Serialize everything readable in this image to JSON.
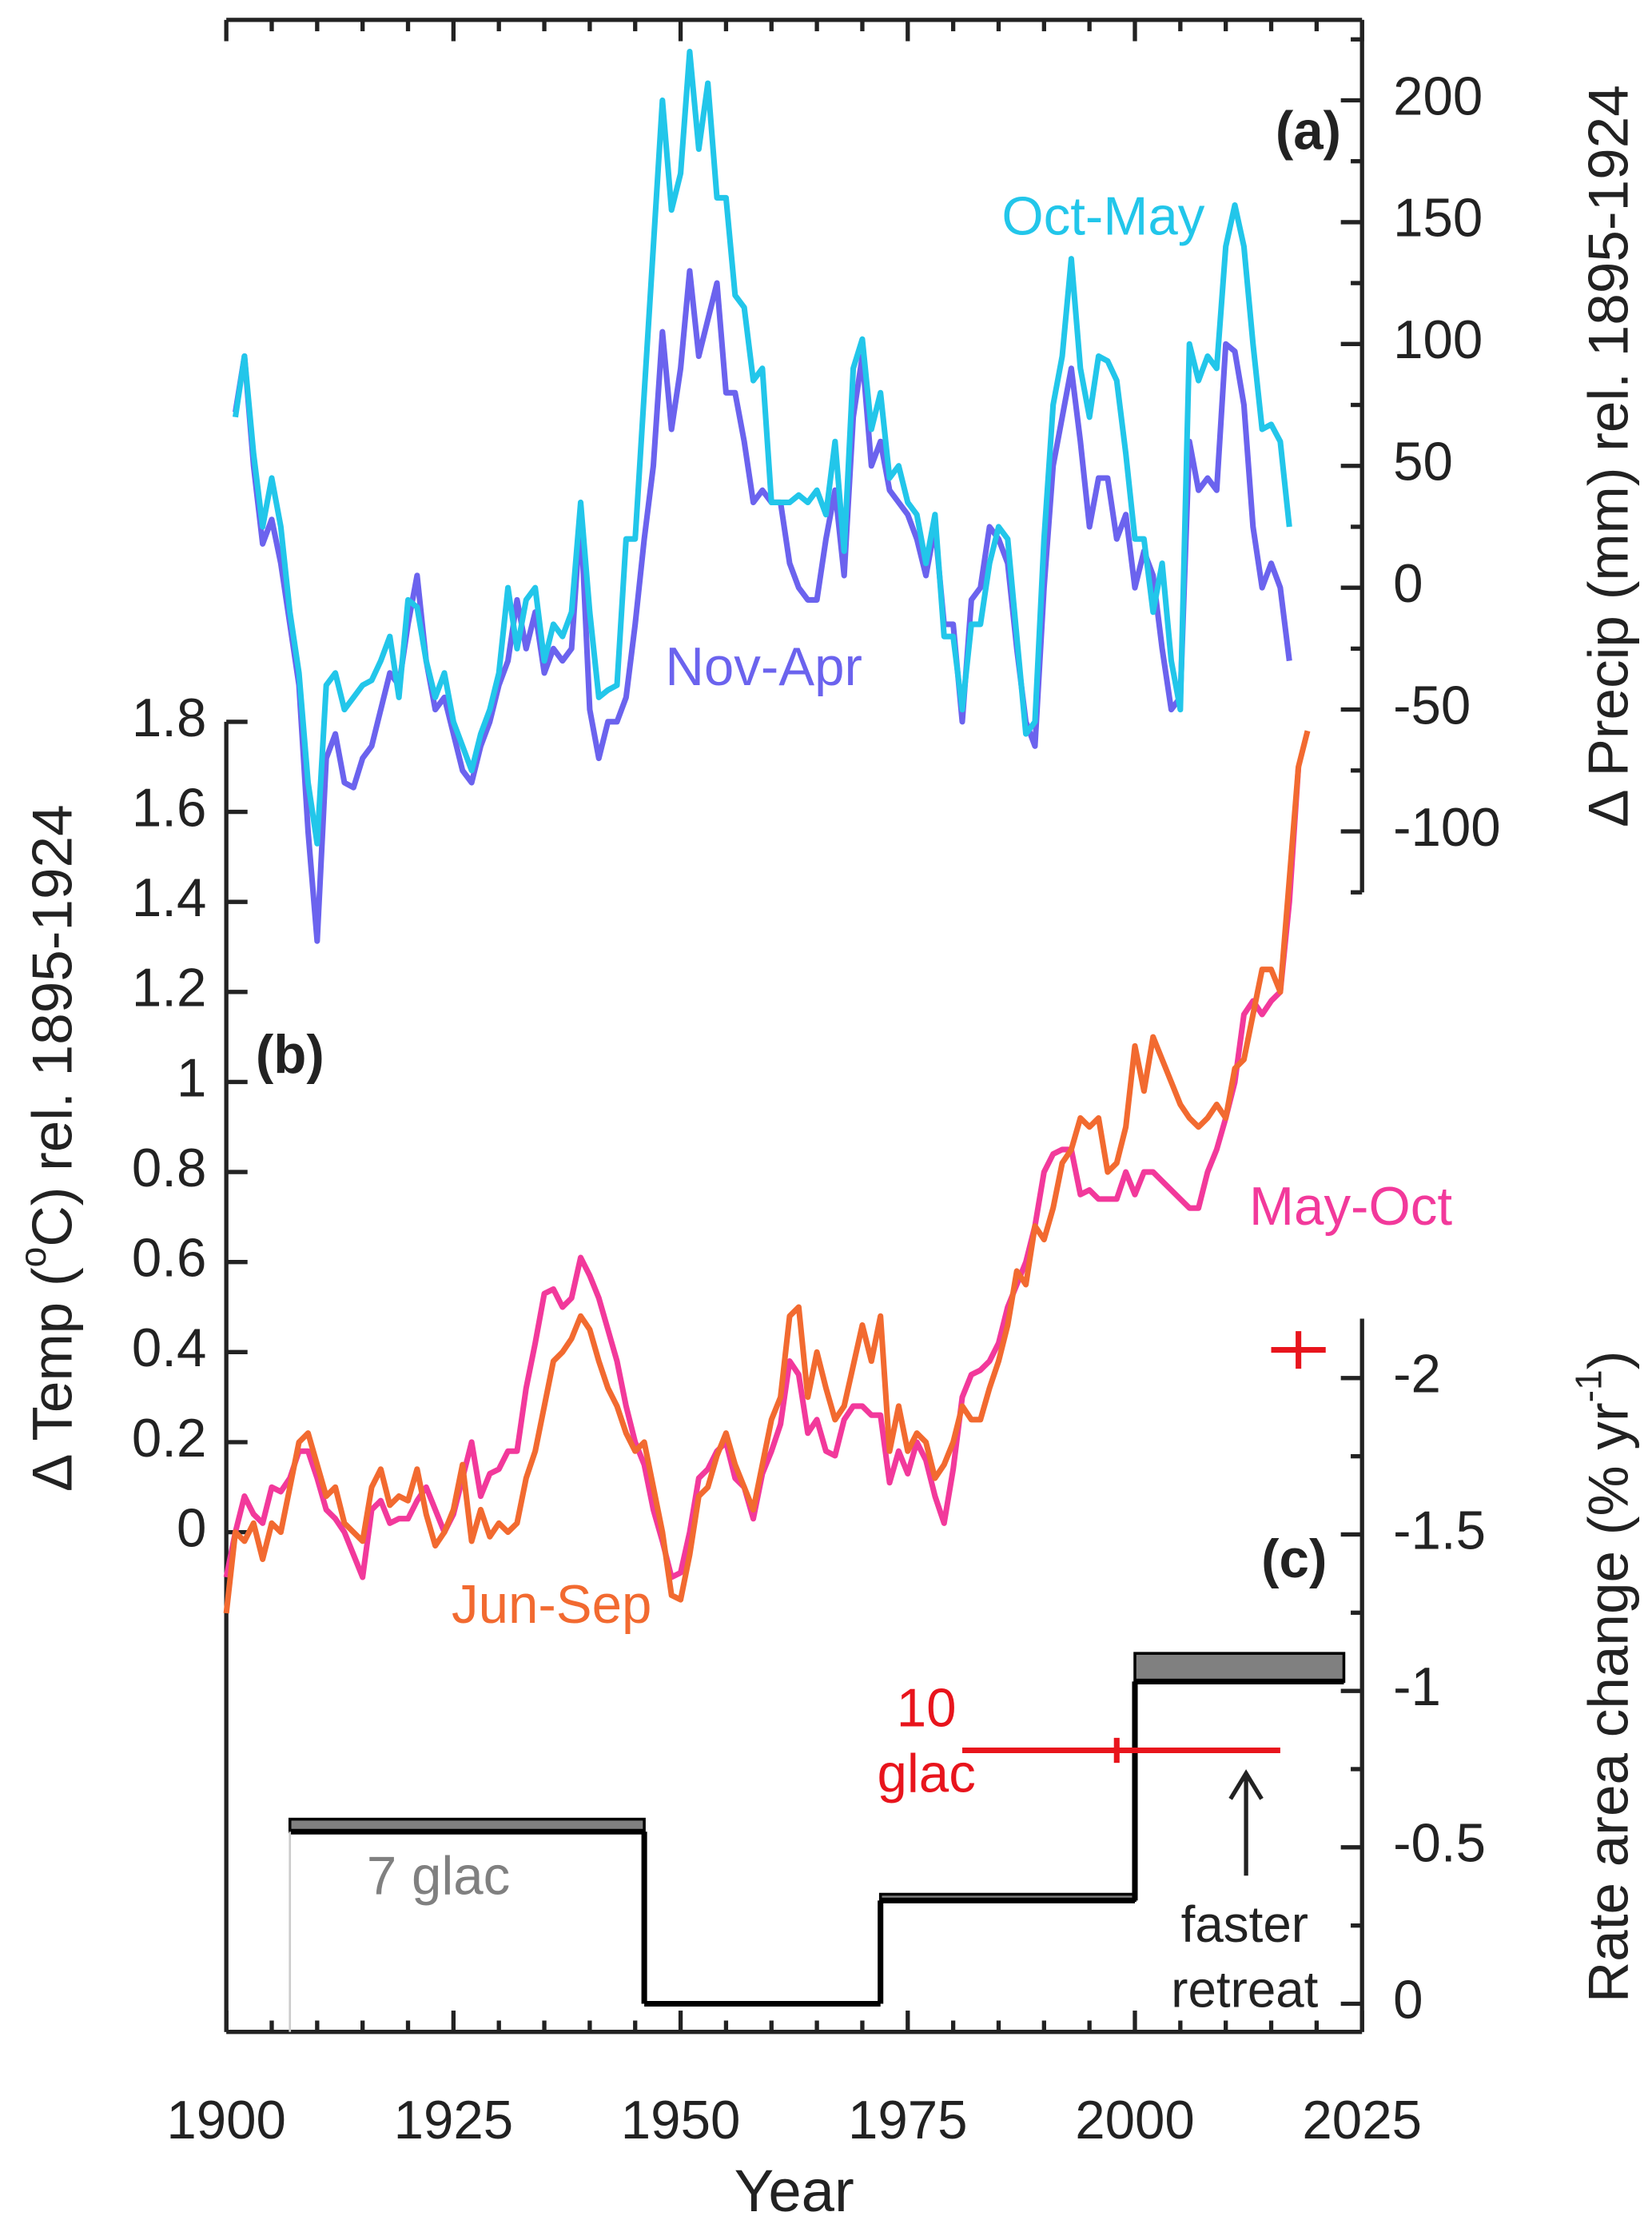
{
  "chart_data": [
    {
      "type": "line",
      "panel_label": "(a)",
      "ylabel_parts": [
        {
          "text": "Δ Precip (mm) rel. 1895-1924"
        }
      ],
      "ylim": [
        -125,
        233
      ],
      "yticks": [
        -100,
        -50,
        0,
        50,
        100,
        150,
        200
      ],
      "yminorticks": [
        -125,
        -75,
        -25,
        25,
        75,
        125,
        175,
        225
      ],
      "x": [
        1901,
        1902,
        1903,
        1904,
        1905,
        1906,
        1907,
        1908,
        1909,
        1910,
        1911,
        1912,
        1913,
        1914,
        1915,
        1916,
        1917,
        1918,
        1919,
        1920,
        1921,
        1922,
        1923,
        1924,
        1925,
        1926,
        1927,
        1928,
        1929,
        1930,
        1931,
        1932,
        1933,
        1934,
        1935,
        1936,
        1937,
        1938,
        1939,
        1940,
        1941,
        1942,
        1943,
        1944,
        1945,
        1946,
        1947,
        1948,
        1949,
        1950,
        1951,
        1952,
        1953,
        1954,
        1955,
        1956,
        1957,
        1958,
        1959,
        1960,
        1961,
        1962,
        1963,
        1964,
        1965,
        1966,
        1967,
        1968,
        1969,
        1970,
        1971,
        1972,
        1973,
        1974,
        1975,
        1976,
        1977,
        1978,
        1979,
        1980,
        1981,
        1982,
        1983,
        1984,
        1985,
        1986,
        1987,
        1988,
        1989,
        1990,
        1991,
        1992,
        1993,
        1994,
        1995,
        1996,
        1997,
        1998,
        1999,
        2000,
        2001,
        2002,
        2003,
        2004,
        2005,
        2006,
        2007,
        2008,
        2009,
        2010,
        2011,
        2012,
        2013,
        2014,
        2015,
        2016,
        2017
      ],
      "series": [
        {
          "name": "Nov-Apr",
          "color": "#6b63ee",
          "values": [
            72,
            95,
            50,
            18,
            28,
            10,
            -15,
            -40,
            -100,
            -145,
            -70,
            -60,
            -80,
            -82,
            -70,
            -65,
            -50,
            -35,
            -40,
            -15,
            5,
            -30,
            -50,
            -45,
            -60,
            -75,
            -80,
            -65,
            -55,
            -40,
            -30,
            -5,
            -25,
            -10,
            -35,
            -25,
            -30,
            -25,
            30,
            -50,
            -70,
            -55,
            -55,
            -45,
            -15,
            20,
            50,
            105,
            65,
            90,
            130,
            95,
            110,
            125,
            80,
            80,
            60,
            35,
            40,
            35,
            35,
            10,
            0,
            -5,
            -5,
            20,
            40,
            5,
            70,
            95,
            50,
            60,
            40,
            35,
            30,
            20,
            5,
            25,
            -15,
            -15,
            -55,
            -5,
            0,
            25,
            20,
            10,
            -25,
            -55,
            -65,
            0,
            50,
            70,
            90,
            60,
            25,
            45,
            45,
            20,
            30,
            0,
            15,
            5,
            -25,
            -50,
            -45,
            60,
            40,
            45,
            40,
            100,
            97,
            75,
            25,
            0,
            10,
            0,
            -30
          ]
        },
        {
          "name": "Oct-May",
          "color": "#22c6ea",
          "values": [
            70,
            95,
            55,
            25,
            45,
            25,
            -10,
            -35,
            -80,
            -105,
            -40,
            -35,
            -50,
            -45,
            -40,
            -38,
            -30,
            -20,
            -45,
            -5,
            -8,
            -30,
            -45,
            -35,
            -55,
            -65,
            -75,
            -60,
            -50,
            -35,
            0,
            -25,
            -5,
            0,
            -30,
            -15,
            -20,
            -10,
            35,
            -10,
            -45,
            -42,
            -40,
            20,
            20,
            80,
            140,
            200,
            155,
            170,
            220,
            180,
            207,
            160,
            160,
            120,
            115,
            85,
            90,
            35,
            35,
            35,
            38,
            35,
            40,
            30,
            60,
            15,
            90,
            102,
            65,
            80,
            45,
            50,
            35,
            30,
            10,
            30,
            -20,
            -20,
            -50,
            -15,
            -15,
            10,
            25,
            20,
            -20,
            -60,
            -55,
            20,
            75,
            95,
            135,
            90,
            70,
            95,
            93,
            85,
            55,
            20,
            20,
            -10,
            10,
            -30,
            -50,
            100,
            85,
            95,
            90,
            140,
            157,
            140,
            100,
            65,
            67,
            60,
            25
          ]
        }
      ]
    },
    {
      "type": "line",
      "panel_label": "(b)",
      "ylabel_parts": [
        {
          "text": "Δ Temp ("
        },
        {
          "text": "o",
          "sup": true
        },
        {
          "text": "C) rel. 1895-1924"
        }
      ],
      "ylim": [
        -1.11,
        1.8
      ],
      "yticks": [
        0,
        0.2,
        0.4,
        0.6,
        0.8,
        1,
        1.2,
        1.4,
        1.6,
        1.8
      ],
      "x": [
        1900,
        1901,
        1902,
        1903,
        1904,
        1905,
        1906,
        1907,
        1908,
        1909,
        1910,
        1911,
        1912,
        1913,
        1914,
        1915,
        1916,
        1917,
        1918,
        1919,
        1920,
        1921,
        1922,
        1923,
        1924,
        1925,
        1926,
        1927,
        1928,
        1929,
        1930,
        1931,
        1932,
        1933,
        1934,
        1935,
        1936,
        1937,
        1938,
        1939,
        1940,
        1941,
        1942,
        1943,
        1944,
        1945,
        1946,
        1947,
        1948,
        1949,
        1950,
        1951,
        1952,
        1953,
        1954,
        1955,
        1956,
        1957,
        1958,
        1959,
        1960,
        1961,
        1962,
        1963,
        1964,
        1965,
        1966,
        1967,
        1968,
        1969,
        1970,
        1971,
        1972,
        1973,
        1974,
        1975,
        1976,
        1977,
        1978,
        1979,
        1980,
        1981,
        1982,
        1983,
        1984,
        1985,
        1986,
        1987,
        1988,
        1989,
        1990,
        1991,
        1992,
        1993,
        1994,
        1995,
        1996,
        1997,
        1998,
        1999,
        2000,
        2001,
        2002,
        2003,
        2004,
        2005,
        2006,
        2007,
        2008,
        2009,
        2010,
        2011,
        2012,
        2013,
        2014,
        2015,
        2016,
        2017,
        2018,
        2019
      ],
      "series": [
        {
          "name": "May-Oct",
          "color": "#f2399b",
          "values": [
            -0.1,
            0.0,
            0.08,
            0.04,
            0.02,
            0.1,
            0.09,
            0.12,
            0.18,
            0.18,
            0.12,
            0.05,
            0.03,
            0.0,
            -0.05,
            -0.1,
            0.05,
            0.07,
            0.02,
            0.03,
            0.03,
            0.07,
            0.1,
            0.05,
            0.0,
            0.04,
            0.12,
            0.2,
            0.08,
            0.13,
            0.14,
            0.18,
            0.18,
            0.32,
            0.42,
            0.53,
            0.54,
            0.5,
            0.52,
            0.61,
            0.57,
            0.52,
            0.45,
            0.38,
            0.28,
            0.2,
            0.15,
            0.05,
            -0.02,
            -0.1,
            -0.09,
            0.0,
            0.12,
            0.14,
            0.18,
            0.2,
            0.12,
            0.1,
            0.03,
            0.13,
            0.18,
            0.24,
            0.38,
            0.35,
            0.22,
            0.25,
            0.18,
            0.17,
            0.25,
            0.28,
            0.28,
            0.26,
            0.26,
            0.11,
            0.18,
            0.13,
            0.2,
            0.16,
            0.08,
            0.02,
            0.14,
            0.3,
            0.35,
            0.36,
            0.38,
            0.42,
            0.5,
            0.55,
            0.6,
            0.68,
            0.8,
            0.84,
            0.85,
            0.85,
            0.75,
            0.76,
            0.74,
            0.74,
            0.74,
            0.8,
            0.75,
            0.8,
            0.8,
            0.78,
            0.76,
            0.74,
            0.72,
            0.72,
            0.8,
            0.85,
            0.92,
            1.0,
            1.15,
            1.18,
            1.15,
            1.18,
            1.2,
            1.4,
            1.7,
            null
          ]
        },
        {
          "name": "Jun-Sep",
          "color": "#f26a30",
          "values": [
            -0.18,
            0.0,
            -0.02,
            0.02,
            -0.06,
            0.02,
            0.0,
            0.1,
            0.2,
            0.22,
            0.15,
            0.08,
            0.1,
            0.02,
            0.0,
            -0.02,
            0.1,
            0.14,
            0.06,
            0.08,
            0.07,
            0.14,
            0.04,
            -0.03,
            0.0,
            0.05,
            0.15,
            -0.02,
            0.05,
            -0.01,
            0.02,
            0.0,
            0.02,
            0.12,
            0.18,
            0.28,
            0.38,
            0.4,
            0.43,
            0.48,
            0.45,
            0.38,
            0.32,
            0.28,
            0.22,
            0.18,
            0.2,
            0.1,
            0.0,
            -0.14,
            -0.15,
            -0.05,
            0.08,
            0.1,
            0.17,
            0.22,
            0.15,
            0.1,
            0.05,
            0.15,
            0.25,
            0.3,
            0.48,
            0.5,
            0.3,
            0.4,
            0.32,
            0.25,
            0.28,
            0.37,
            0.46,
            0.38,
            0.48,
            0.18,
            0.28,
            0.18,
            0.22,
            0.2,
            0.12,
            0.15,
            0.2,
            0.28,
            0.25,
            0.25,
            0.32,
            0.38,
            0.46,
            0.58,
            0.55,
            0.68,
            0.65,
            0.72,
            0.82,
            0.85,
            0.92,
            0.9,
            0.92,
            0.8,
            0.82,
            0.9,
            1.08,
            0.98,
            1.1,
            1.05,
            1.0,
            0.95,
            0.92,
            0.9,
            0.92,
            0.95,
            0.92,
            1.03,
            1.05,
            1.15,
            1.25,
            1.25,
            1.2,
            1.45,
            1.7,
            1.78
          ]
        }
      ]
    },
    {
      "type": "step",
      "panel_label": "(c)",
      "ylabel_parts": [
        {
          "text": "Rate area change (% yr"
        },
        {
          "text": "-1",
          "sup": true
        },
        {
          "text": ")"
        }
      ],
      "ylim": [
        0.09,
        -2.19
      ],
      "yticks": [
        0,
        -0.5,
        -1,
        -1.5,
        -2
      ],
      "yminorticks": [
        -0.25,
        -0.75,
        -1.25,
        -1.75
      ],
      "xlabel": "Year",
      "xlim": [
        1900,
        2025
      ],
      "xticks": [
        1900,
        1925,
        1950,
        1975,
        2000,
        2025
      ],
      "xminorticks": [
        1905,
        1910,
        1915,
        1920,
        1930,
        1935,
        1940,
        1945,
        1955,
        1960,
        1965,
        1970,
        1980,
        1985,
        1990,
        1995,
        2005,
        2010,
        2015,
        2020
      ],
      "step": {
        "edges": [
          1907,
          1946,
          1972,
          2000,
          2023
        ],
        "values": [
          -0.55,
          0,
          -0.33,
          -1.03
        ],
        "upper": [
          -0.59,
          null,
          -0.35,
          -1.12
        ],
        "color": "#000000",
        "band_color": "#808080"
      },
      "annotation": "7 glac",
      "points": [
        {
          "x": 1998,
          "value": -0.81,
          "yerr": 0.04,
          "xmin": 1981,
          "xmax": 2016,
          "label": [
            "10",
            "glac"
          ]
        },
        {
          "x": 2018,
          "value": -2.09,
          "yerr": 0.06,
          "xmin": 2015,
          "xmax": 2021
        }
      ],
      "point_color": "#e8141c",
      "arrow_text": [
        "faster",
        "retreat"
      ]
    }
  ]
}
